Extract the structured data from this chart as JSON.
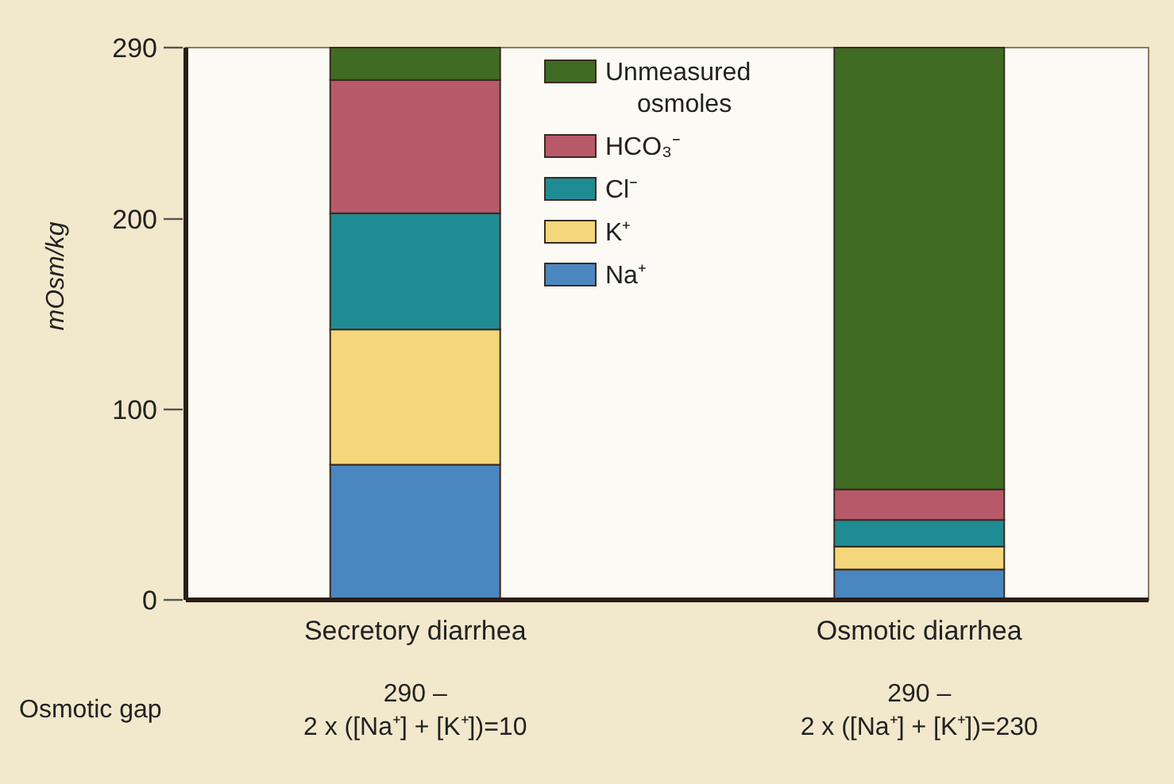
{
  "chart_data": {
    "type": "bar",
    "stacked": true,
    "ylabel": "mOsm/kg",
    "categories": [
      "Secretory diarrhea",
      "Osmotic diarrhea"
    ],
    "series": [
      {
        "name": "Na⁺",
        "color": "#4a86c0",
        "values": [
          71,
          16
        ]
      },
      {
        "name": "K⁺",
        "color": "#f3d77a",
        "values": [
          71,
          12
        ]
      },
      {
        "name": "Cl⁻",
        "color": "#1f8c94",
        "values": [
          61,
          14
        ]
      },
      {
        "name": "HCO₃⁻",
        "color": "#b8596a",
        "values": [
          70,
          16
        ]
      },
      {
        "name": "Unmeasured osmoles",
        "color": "#3f6b22",
        "values": [
          17,
          232
        ]
      }
    ],
    "ylim": [
      0,
      290
    ],
    "yticks": [
      0,
      100,
      200,
      290
    ],
    "grid": false,
    "legend": "top",
    "annotations": [
      "Osmotic gap",
      "290 –\n2 x ([Na⁺] + [K⁺])=10",
      "290 –\n2 x ([Na⁺] + [K⁺])=230"
    ]
  }
}
